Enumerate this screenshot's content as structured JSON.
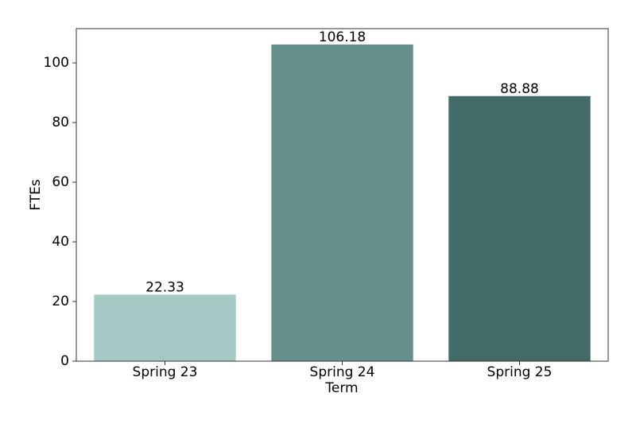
{
  "chart_data": {
    "type": "bar",
    "x_label": "Term",
    "y_label": "FTEs",
    "categories": [
      "Spring 23",
      "Spring 24",
      "Spring 25"
    ],
    "values": [
      22.33,
      106.18,
      88.88
    ],
    "colors": [
      "#a5cac6",
      "#66908c",
      "#426a66"
    ],
    "ylim": [
      0,
      111.49
    ],
    "yticks": [
      0,
      20,
      40,
      60,
      80,
      100
    ],
    "grid": false
  }
}
